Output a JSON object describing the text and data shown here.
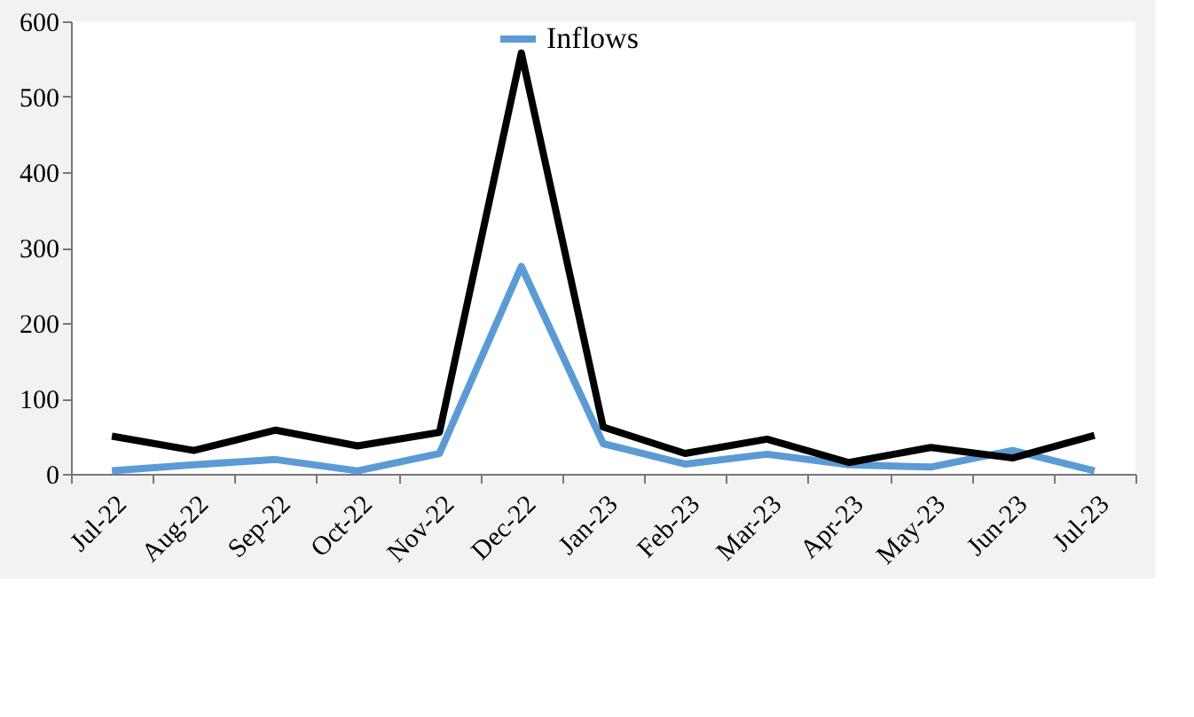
{
  "chart_data": {
    "type": "line",
    "categories": [
      "Jul-22",
      "Aug-22",
      "Sep-22",
      "Oct-22",
      "Nov-22",
      "Dec-22",
      "Jan-23",
      "Feb-23",
      "Mar-23",
      "Apr-23",
      "May-23",
      "Jun-23",
      "Jul-23"
    ],
    "series": [
      {
        "name": "Inflows",
        "color": "#5b9bd5",
        "values": [
          4,
          12,
          19,
          4,
          27,
          275,
          40,
          13,
          26,
          12,
          9,
          31,
          4
        ]
      },
      {
        "color": "#000000",
        "values": [
          50,
          31,
          58,
          37,
          55,
          558,
          62,
          27,
          46,
          15,
          35,
          21,
          51
        ]
      }
    ],
    "ylim": [
      0,
      600
    ],
    "yticks": [
      0,
      100,
      200,
      300,
      400,
      500,
      600
    ],
    "grid": false,
    "legend": "top",
    "marker": "none",
    "line_style": "solid"
  }
}
